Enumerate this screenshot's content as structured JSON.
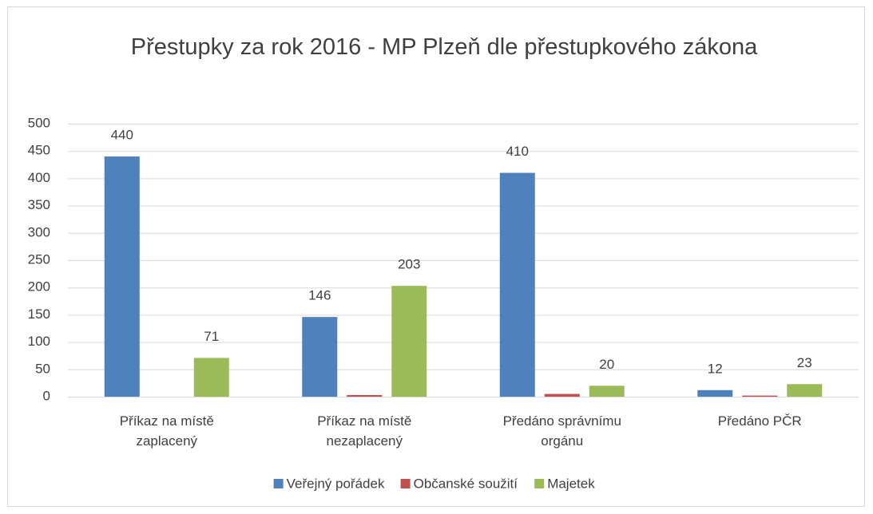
{
  "chart_data": {
    "type": "bar",
    "title": "Přestupky za rok 2016 - MP Plzeň dle přestupkového zákona",
    "categories": [
      "Příkaz na místě zaplacený",
      "Příkaz na místě nezaplacený",
      "Předáno správnímu orgánu",
      "Předáno PČR"
    ],
    "series": [
      {
        "name": "Veřejný pořádek",
        "color": "#4f81bd",
        "values": [
          440,
          146,
          410,
          12
        ],
        "data_labels": true
      },
      {
        "name": "Občanské soužití",
        "color": "#c0504d",
        "values": [
          0,
          3,
          5,
          2
        ],
        "data_labels": false
      },
      {
        "name": "Majetek",
        "color": "#9bbb59",
        "values": [
          71,
          203,
          20,
          23
        ],
        "data_labels": true
      }
    ],
    "ylim": [
      0,
      500
    ],
    "yticks": [
      0,
      50,
      100,
      150,
      200,
      250,
      300,
      350,
      400,
      450,
      500
    ],
    "grid": true,
    "legend": "bottom"
  }
}
